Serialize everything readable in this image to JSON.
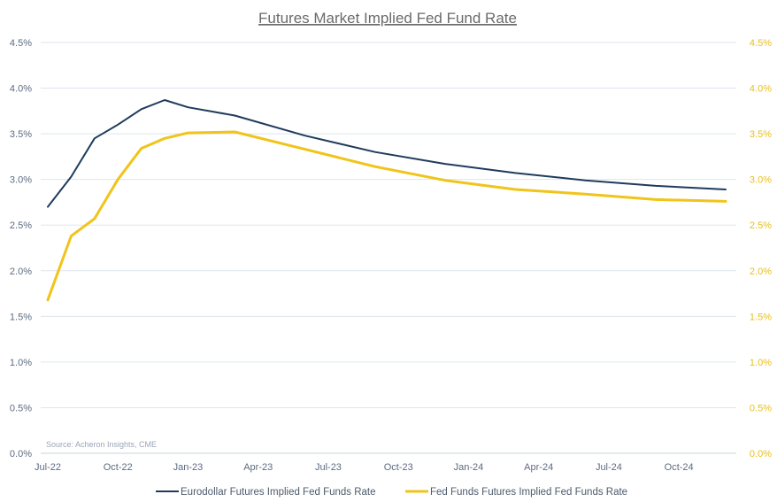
{
  "chart_data": {
    "type": "line",
    "title": "Futures Market Implied Fed Fund Rate",
    "x_tick_labels": [
      "Jul-22",
      "Oct-22",
      "Jan-23",
      "Apr-23",
      "Jul-23",
      "Oct-23",
      "Jan-24",
      "Apr-24",
      "Jul-24",
      "Oct-24"
    ],
    "y_tick_labels": [
      "0.0%",
      "0.5%",
      "1.0%",
      "1.5%",
      "2.0%",
      "2.5%",
      "3.0%",
      "3.5%",
      "4.0%",
      "4.5%"
    ],
    "y2_tick_labels": [
      "0.0%",
      "0.5%",
      "1.0%",
      "1.5%",
      "2.0%",
      "2.5%",
      "3.0%",
      "3.5%",
      "4.0%",
      "4.5%"
    ],
    "ylim": [
      0,
      4.5
    ],
    "y2lim": [
      0,
      4.5
    ],
    "xlim": [
      "2022-07",
      "2024-12"
    ],
    "grid": true,
    "legend_position": "bottom",
    "source": "Source: Acheron Insights, CME",
    "series": [
      {
        "name": "Eurodollar Futures Implied Fed Funds Rate",
        "color": "#1f3b5c",
        "axis": "left",
        "x": [
          "2022-07",
          "2022-08",
          "2022-09",
          "2022-10",
          "2022-11",
          "2022-12",
          "2023-01",
          "2023-03",
          "2023-06",
          "2023-09",
          "2023-12",
          "2024-03",
          "2024-06",
          "2024-09",
          "2024-12"
        ],
        "values": [
          2.7,
          3.03,
          3.45,
          3.6,
          3.77,
          3.87,
          3.79,
          3.7,
          3.48,
          3.3,
          3.17,
          3.07,
          2.99,
          2.93,
          2.89
        ]
      },
      {
        "name": "Fed Funds Futures Implied Fed Funds Rate",
        "color": "#f0c419",
        "axis": "right",
        "x": [
          "2022-07",
          "2022-08",
          "2022-09",
          "2022-10",
          "2022-11",
          "2022-12",
          "2023-01",
          "2023-03",
          "2023-06",
          "2023-09",
          "2023-12",
          "2024-03",
          "2024-06",
          "2024-09",
          "2024-12"
        ],
        "values": [
          1.68,
          2.38,
          2.57,
          3.0,
          3.34,
          3.45,
          3.51,
          3.52,
          3.33,
          3.14,
          2.99,
          2.89,
          2.84,
          2.78,
          2.76
        ]
      }
    ]
  }
}
